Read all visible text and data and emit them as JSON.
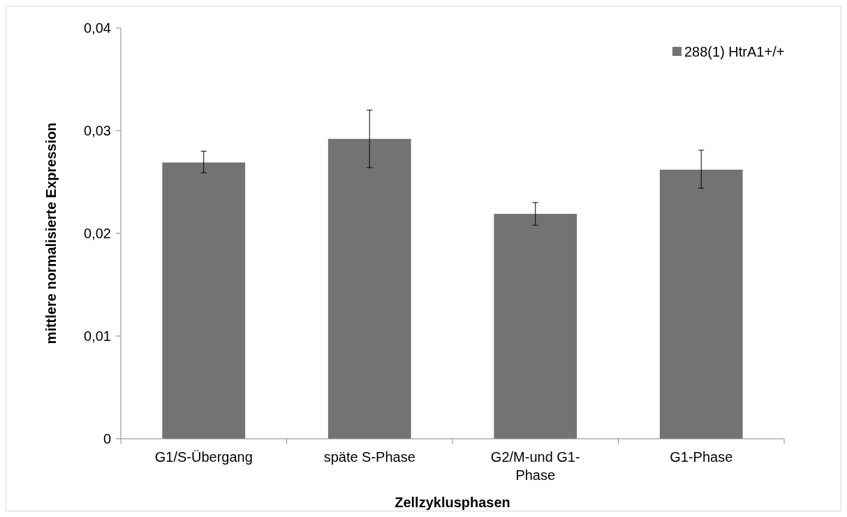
{
  "chart_data": {
    "type": "bar",
    "xlabel": "Zellzyklusphasen",
    "ylabel": "mittlere normalisierte Expression",
    "categories": [
      "G1/S-Übergang",
      "späte S-Phase",
      "G2/M-und G1-Phase",
      "G1-Phase"
    ],
    "series": [
      {
        "name": "288(1) HtrA1+/+",
        "color": "#737373",
        "values": [
          0.0269,
          0.0292,
          0.0219,
          0.0262
        ],
        "errors": [
          [
            0.0259,
            0.028
          ],
          [
            0.0264,
            0.032
          ],
          [
            0.0208,
            0.023
          ],
          [
            0.0244,
            0.0281
          ]
        ]
      }
    ],
    "ylim": [
      0,
      0.04
    ],
    "yticks": [
      {
        "value": 0,
        "label": "0"
      },
      {
        "value": 0.01,
        "label": "0,01"
      },
      {
        "value": 0.02,
        "label": "0,02"
      },
      {
        "value": 0.03,
        "label": "0,03"
      },
      {
        "value": 0.04,
        "label": "0,04"
      }
    ],
    "legend": "top right",
    "grid": false
  }
}
